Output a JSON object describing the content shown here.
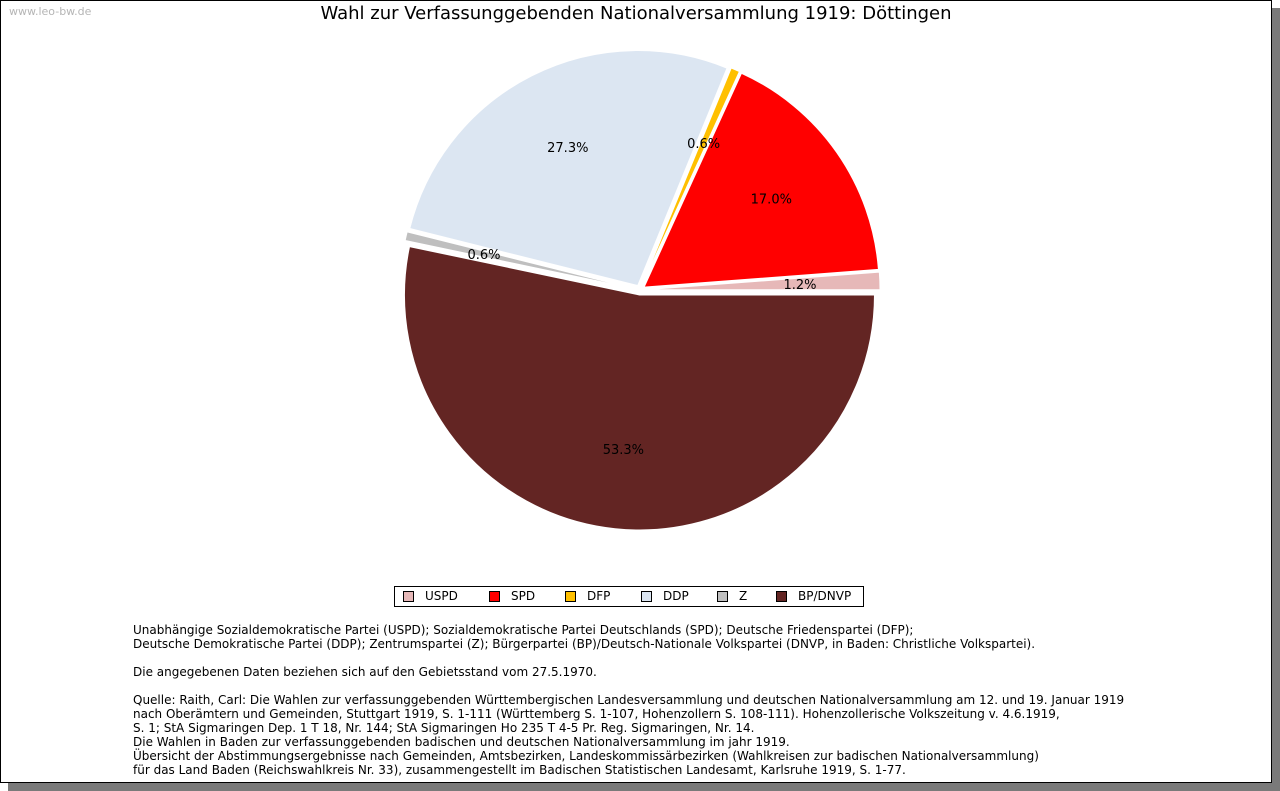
{
  "watermark": "www.leo-bw.de",
  "chart_data": {
    "type": "pie",
    "title": "Wahl zur Verfassunggebenden Nationalversammlung 1919: Döttingen",
    "start_angle_deg": 0,
    "direction": "counterclockwise",
    "legend_position": "bottom",
    "slices": [
      {
        "label": "USPD",
        "value": 1.2,
        "display": "1.2%",
        "color": "#e6b8b8"
      },
      {
        "label": "SPD",
        "value": 17.0,
        "display": "17.0%",
        "color": "#ff0000"
      },
      {
        "label": "DFP",
        "value": 0.6,
        "display": "0.6%",
        "color": "#ffc000"
      },
      {
        "label": "DDP",
        "value": 27.3,
        "display": "27.3%",
        "color": "#dce6f2"
      },
      {
        "label": "Z",
        "value": 0.6,
        "display": "0.6%",
        "color": "#bfbfbf"
      },
      {
        "label": "BP/DNVP",
        "value": 53.3,
        "display": "53.3%",
        "color": "#632523"
      }
    ]
  },
  "notes": {
    "parties": [
      "Unabhängige Sozialdemokratische Partei (USPD); Sozialdemokratische Partei Deutschlands (SPD); Deutsche Friedenspartei (DFP);",
      "Deutsche Demokratische Partei (DDP); Zentrumspartei (Z); Bürgerpartei (BP)/Deutsch-Nationale Volkspartei (DNVP, in Baden: Christliche Volkspartei)."
    ],
    "gebietsstand": "Die angegebenen Daten beziehen sich auf den Gebietsstand vom 27.5.1970.",
    "source": [
      "Quelle: Raith, Carl: Die Wahlen zur verfassunggebenden Württembergischen Landesversammlung und deutschen Nationalversammlung am 12. und 19. Januar 1919",
      "nach Oberämtern und Gemeinden, Stuttgart 1919, S. 1-111 (Württemberg S. 1-107, Hohenzollern S. 108-111). Hohenzollerische Volkszeitung v. 4.6.1919,",
      "S. 1; StA Sigmaringen Dep. 1 T 18, Nr. 144; StA Sigmaringen Ho 235 T 4-5 Pr. Reg. Sigmaringen, Nr. 14.",
      "Die Wahlen in Baden zur verfassunggebenden badischen und deutschen Nationalversammlung im jahr 1919.",
      "Übersicht der Abstimmungsergebnisse nach Gemeinden, Amtsbezirken, Landeskommissärbezirken (Wahlkreisen zur badischen Nationalversammlung)",
      "für das Land Baden (Reichswahlkreis Nr. 33), zusammengestellt im Badischen Statistischen Landesamt, Karlsruhe 1919, S. 1-77."
    ]
  }
}
